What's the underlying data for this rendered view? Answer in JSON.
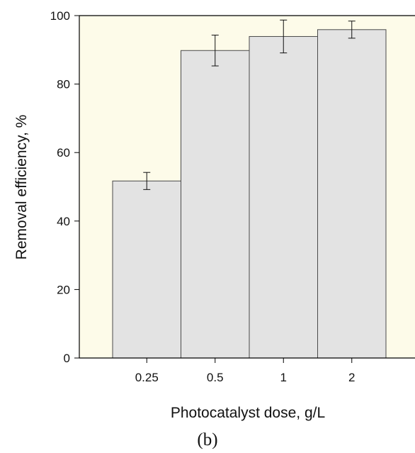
{
  "chart_data": {
    "type": "bar",
    "categories": [
      "0.25",
      "0.5",
      "1",
      "2"
    ],
    "values": [
      51.7,
      89.8,
      93.9,
      95.9
    ],
    "error": [
      2.5,
      4.5,
      4.8,
      2.5
    ],
    "xlabel": "Photocatalyst dose, g/L",
    "ylabel": "Removal efficiency, %",
    "ylim": [
      0,
      100
    ],
    "yticks": [
      "0",
      "20",
      "40",
      "60",
      "80",
      "100"
    ],
    "panel_label": "(b)",
    "grid": false,
    "colors": {
      "plot_background": "#fdfbe9",
      "bar_fill": "#e3e3e3",
      "bar_stroke": "#4a4a4a",
      "axis": "#000000"
    }
  }
}
